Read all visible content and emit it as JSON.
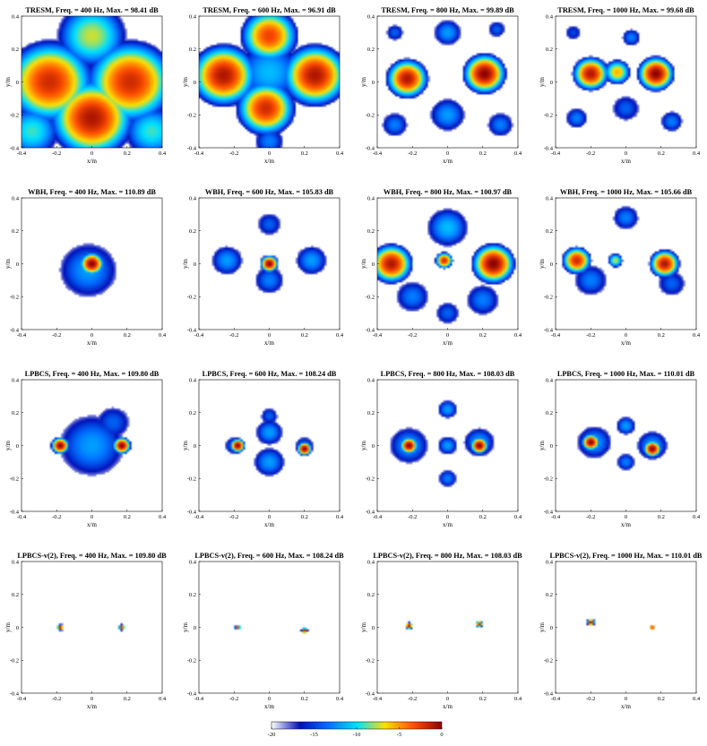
{
  "chart_data": {
    "type": "heatmap",
    "xlabel": "x/m",
    "ylabel": "y/m",
    "xlim": [
      -0.4,
      0.4
    ],
    "ylim": [
      -0.4,
      0.4
    ],
    "xticks": [
      "-0.4",
      "-0.2",
      "0",
      "0.2",
      "0.4"
    ],
    "yticks": [
      "0.4",
      "0.2",
      "0",
      "-0.2",
      "-0.4"
    ],
    "colorbar": {
      "range": [
        -20,
        0
      ],
      "ticks": [
        "-20",
        "-15",
        "-10",
        "-5",
        "0"
      ],
      "colors": [
        "#ffffff",
        "#0010b8",
        "#0070ff",
        "#00e0ff",
        "#ffe000",
        "#ff5000",
        "#900000"
      ]
    },
    "methods": [
      "TRESM",
      "WBH",
      "LPBCS",
      "LPBCS-v(2)"
    ],
    "frequencies": [
      400,
      600,
      800,
      1000
    ],
    "panels": [
      {
        "title": "TRESM,  Freq. = 400 Hz,  Max. = 98.41 dB",
        "method": "TRESM",
        "freq": 400,
        "max_db": 98.41,
        "floor": -20,
        "sources": [
          {
            "x": -0.24,
            "y": 0.0,
            "s": 0.15,
            "a": -2
          },
          {
            "x": 0.22,
            "y": 0.0,
            "s": 0.15,
            "a": -2
          },
          {
            "x": 0.0,
            "y": -0.22,
            "s": 0.14,
            "a": -1
          },
          {
            "x": 0.0,
            "y": 0.28,
            "s": 0.14,
            "a": -8
          },
          {
            "x": -0.34,
            "y": -0.3,
            "s": 0.12,
            "a": -10
          },
          {
            "x": 0.34,
            "y": -0.3,
            "s": 0.12,
            "a": -10
          }
        ]
      },
      {
        "title": "TRESM,  Freq. = 600 Hz,  Max. = 96.91 dB",
        "method": "TRESM",
        "freq": 600,
        "max_db": 96.91,
        "floor": -20,
        "sources": [
          {
            "x": -0.26,
            "y": 0.04,
            "s": 0.11,
            "a": -1
          },
          {
            "x": 0.26,
            "y": 0.04,
            "s": 0.11,
            "a": -1
          },
          {
            "x": -0.02,
            "y": -0.16,
            "s": 0.1,
            "a": -2
          },
          {
            "x": 0.0,
            "y": 0.28,
            "s": 0.1,
            "a": -3
          },
          {
            "x": 0.0,
            "y": 0.06,
            "s": 0.16,
            "a": -12
          },
          {
            "x": 0.0,
            "y": -0.36,
            "s": 0.08,
            "a": -14
          }
        ]
      },
      {
        "title": "TRESM,  Freq. = 800 Hz,  Max. = 99.89 dB",
        "method": "TRESM",
        "freq": 800,
        "max_db": 99.89,
        "floor": -20,
        "sources": [
          {
            "x": -0.23,
            "y": 0.02,
            "s": 0.07,
            "a": -1
          },
          {
            "x": 0.21,
            "y": 0.05,
            "s": 0.07,
            "a": 0
          },
          {
            "x": 0.0,
            "y": 0.3,
            "s": 0.07,
            "a": -13
          },
          {
            "x": 0.0,
            "y": -0.2,
            "s": 0.09,
            "a": -13
          },
          {
            "x": -0.3,
            "y": -0.26,
            "s": 0.07,
            "a": -14
          },
          {
            "x": 0.3,
            "y": -0.26,
            "s": 0.07,
            "a": -14
          },
          {
            "x": 0.28,
            "y": 0.32,
            "s": 0.05,
            "a": -15
          },
          {
            "x": -0.3,
            "y": 0.3,
            "s": 0.05,
            "a": -15
          }
        ]
      },
      {
        "title": "TRESM,  Freq. = 1000 Hz,  Max. = 99.68 dB",
        "method": "TRESM",
        "freq": 1000,
        "max_db": 99.68,
        "floor": -20,
        "sources": [
          {
            "x": -0.2,
            "y": 0.05,
            "s": 0.06,
            "a": -1
          },
          {
            "x": 0.17,
            "y": 0.05,
            "s": 0.06,
            "a": 0
          },
          {
            "x": -0.05,
            "y": 0.06,
            "s": 0.05,
            "a": -6
          },
          {
            "x": 0.03,
            "y": 0.27,
            "s": 0.05,
            "a": -14
          },
          {
            "x": -0.28,
            "y": -0.22,
            "s": 0.06,
            "a": -14
          },
          {
            "x": 0.26,
            "y": -0.24,
            "s": 0.06,
            "a": -14
          },
          {
            "x": 0.0,
            "y": -0.16,
            "s": 0.08,
            "a": -15
          },
          {
            "x": -0.3,
            "y": 0.3,
            "s": 0.05,
            "a": -16
          }
        ]
      },
      {
        "title": "WBH,  Freq. = 400 Hz,  Max. = 110.89 dB",
        "method": "WBH",
        "freq": 400,
        "max_db": 110.89,
        "floor": -20,
        "sources": [
          {
            "x": 0.0,
            "y": 0.0,
            "s": 0.04,
            "a": 0
          },
          {
            "x": -0.02,
            "y": -0.04,
            "s": 0.15,
            "a": -13
          }
        ]
      },
      {
        "title": "WBH,  Freq. = 600 Hz,  Max. = 105.83 dB",
        "method": "WBH",
        "freq": 600,
        "max_db": 105.83,
        "floor": -20,
        "sources": [
          {
            "x": 0.0,
            "y": 0.0,
            "s": 0.03,
            "a": 0
          },
          {
            "x": -0.24,
            "y": 0.02,
            "s": 0.08,
            "a": -13
          },
          {
            "x": 0.24,
            "y": 0.02,
            "s": 0.08,
            "a": -13
          },
          {
            "x": 0.0,
            "y": 0.24,
            "s": 0.07,
            "a": -15
          },
          {
            "x": 0.0,
            "y": -0.1,
            "s": 0.08,
            "a": -14
          }
        ]
      },
      {
        "title": "WBH,  Freq. = 800 Hz,  Max. = 100.97 dB",
        "method": "WBH",
        "freq": 800,
        "max_db": 100.97,
        "floor": -20,
        "sources": [
          {
            "x": -0.32,
            "y": 0.0,
            "s": 0.07,
            "a": -1
          },
          {
            "x": 0.26,
            "y": 0.0,
            "s": 0.07,
            "a": 0
          },
          {
            "x": -0.02,
            "y": 0.02,
            "s": 0.03,
            "a": -2
          },
          {
            "x": 0.0,
            "y": 0.22,
            "s": 0.1,
            "a": -12
          },
          {
            "x": -0.2,
            "y": -0.2,
            "s": 0.09,
            "a": -14
          },
          {
            "x": 0.2,
            "y": -0.22,
            "s": 0.09,
            "a": -14
          },
          {
            "x": 0.0,
            "y": -0.3,
            "s": 0.07,
            "a": -15
          }
        ]
      },
      {
        "title": "WBH,  Freq. = 1000 Hz,  Max. = 105.66 dB",
        "method": "WBH",
        "freq": 1000,
        "max_db": 105.66,
        "floor": -20,
        "sources": [
          {
            "x": -0.28,
            "y": 0.02,
            "s": 0.05,
            "a": -2
          },
          {
            "x": 0.22,
            "y": 0.0,
            "s": 0.05,
            "a": -1
          },
          {
            "x": -0.06,
            "y": 0.02,
            "s": 0.03,
            "a": -8
          },
          {
            "x": 0.0,
            "y": 0.28,
            "s": 0.07,
            "a": -14
          },
          {
            "x": -0.2,
            "y": -0.1,
            "s": 0.09,
            "a": -14
          },
          {
            "x": 0.26,
            "y": -0.12,
            "s": 0.08,
            "a": -15
          }
        ]
      },
      {
        "title": "LPBCS,  Freq. = 400 Hz,  Max. = 109.80 dB",
        "method": "LPBCS",
        "freq": 400,
        "max_db": 109.8,
        "floor": -20,
        "sources": [
          {
            "x": -0.18,
            "y": 0.0,
            "s": 0.03,
            "a": 0
          },
          {
            "x": 0.17,
            "y": 0.0,
            "s": 0.03,
            "a": 0
          },
          {
            "x": 0.0,
            "y": 0.0,
            "s": 0.17,
            "a": -13
          },
          {
            "x": 0.12,
            "y": 0.14,
            "s": 0.1,
            "a": -15
          }
        ]
      },
      {
        "title": "LPBCS,  Freq. = 600 Hz,  Max. = 108.24 dB",
        "method": "LPBCS",
        "freq": 600,
        "max_db": 108.24,
        "floor": -20,
        "sources": [
          {
            "x": -0.18,
            "y": 0.0,
            "s": 0.025,
            "a": 0
          },
          {
            "x": 0.2,
            "y": -0.02,
            "s": 0.025,
            "a": 0
          },
          {
            "x": 0.0,
            "y": 0.08,
            "s": 0.07,
            "a": -13
          },
          {
            "x": 0.0,
            "y": -0.1,
            "s": 0.08,
            "a": -13
          },
          {
            "x": 0.0,
            "y": 0.18,
            "s": 0.05,
            "a": -15
          },
          {
            "x": -0.2,
            "y": 0.0,
            "s": 0.05,
            "a": -14
          },
          {
            "x": 0.2,
            "y": 0.0,
            "s": 0.05,
            "a": -14
          }
        ]
      },
      {
        "title": "LPBCS,  Freq. = 800 Hz,  Max. = 108.03 dB",
        "method": "LPBCS",
        "freq": 800,
        "max_db": 108.03,
        "floor": -20,
        "sources": [
          {
            "x": -0.22,
            "y": 0.0,
            "s": 0.03,
            "a": 0
          },
          {
            "x": 0.18,
            "y": 0.0,
            "s": 0.03,
            "a": 0
          },
          {
            "x": -0.22,
            "y": 0.0,
            "s": 0.1,
            "a": -13
          },
          {
            "x": 0.18,
            "y": 0.02,
            "s": 0.08,
            "a": -13
          },
          {
            "x": 0.0,
            "y": 0.22,
            "s": 0.05,
            "a": -13
          },
          {
            "x": 0.0,
            "y": 0.0,
            "s": 0.05,
            "a": -13
          },
          {
            "x": 0.0,
            "y": -0.2,
            "s": 0.05,
            "a": -14
          }
        ]
      },
      {
        "title": "LPBCS,  Freq. = 1000 Hz,  Max. = 110.01 dB",
        "method": "LPBCS",
        "freq": 1000,
        "max_db": 110.01,
        "floor": -20,
        "sources": [
          {
            "x": -0.2,
            "y": 0.02,
            "s": 0.03,
            "a": 0
          },
          {
            "x": 0.15,
            "y": -0.02,
            "s": 0.03,
            "a": 0
          },
          {
            "x": -0.18,
            "y": 0.02,
            "s": 0.09,
            "a": -13
          },
          {
            "x": 0.15,
            "y": 0.0,
            "s": 0.08,
            "a": -13
          },
          {
            "x": 0.0,
            "y": 0.12,
            "s": 0.05,
            "a": -13
          },
          {
            "x": 0.0,
            "y": -0.1,
            "s": 0.05,
            "a": -14
          }
        ]
      },
      {
        "title": "LPBCS-v(2),  Freq. = 400 Hz,  Max. = 109.80 dB",
        "method": "LPBCS-v(2)",
        "freq": 400,
        "max_db": 109.8,
        "floor": -20,
        "sources": [
          {
            "x": -0.18,
            "y": 0.0,
            "s": 0.012,
            "a": 0
          },
          {
            "x": 0.17,
            "y": 0.0,
            "s": 0.011,
            "a": -1
          }
        ]
      },
      {
        "title": "LPBCS-v(2),  Freq. = 600 Hz,  Max. = 108.24 dB",
        "method": "LPBCS-v(2)",
        "freq": 600,
        "max_db": 108.24,
        "floor": -20,
        "sources": [
          {
            "x": -0.18,
            "y": 0.0,
            "s": 0.01,
            "a": -1
          },
          {
            "x": 0.2,
            "y": -0.02,
            "s": 0.011,
            "a": 0
          }
        ]
      },
      {
        "title": "LPBCS-v(2),  Freq. = 800 Hz,  Max. = 108.03 dB",
        "method": "LPBCS-v(2)",
        "freq": 800,
        "max_db": 108.03,
        "floor": -20,
        "sources": [
          {
            "x": -0.22,
            "y": 0.01,
            "s": 0.013,
            "a": 0
          },
          {
            "x": 0.18,
            "y": 0.02,
            "s": 0.012,
            "a": -1
          }
        ]
      },
      {
        "title": "LPBCS-v(2),  Freq. = 1000 Hz,  Max. = 110.01 dB",
        "method": "LPBCS-v(2)",
        "freq": 1000,
        "max_db": 110.01,
        "floor": -20,
        "sources": [
          {
            "x": -0.2,
            "y": 0.03,
            "s": 0.013,
            "a": 0
          },
          {
            "x": 0.15,
            "y": 0.0,
            "s": 0.011,
            "a": -1
          }
        ]
      }
    ]
  }
}
